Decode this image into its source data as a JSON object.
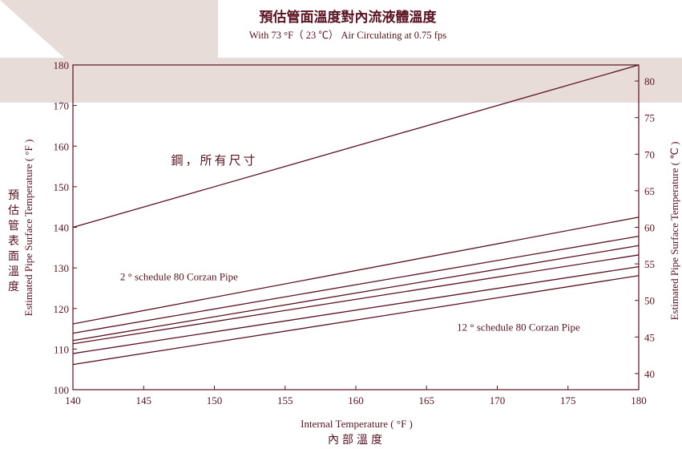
{
  "header": {
    "title": "預估管面溫度對內流液體溫度",
    "subtitle": "With 73 °F（ 23 ℃） Air Circulating at 0.75 fps"
  },
  "colors": {
    "band": "#e8dcd9",
    "line": "#5a1220",
    "text": "#5a1220",
    "axis": "#5a1220"
  },
  "chart_data": {
    "type": "line",
    "title": "預估管面溫度對內流液體溫度",
    "subtitle": "With 73 °F（ 23 ℃） Air Circulating at 0.75 fps",
    "xlabel": "Internal Temperature ( °F )",
    "xlabel_cn": "內部溫度",
    "ylabel": "Estimated Pipe Surface Temperature ( °F )",
    "ylabel_cn": "預估管表面溫度",
    "y2label": "Estimated Pipe Surface Temperature ( ℃ )",
    "xlim": [
      140,
      180
    ],
    "ylim": [
      100,
      180
    ],
    "y2lim": [
      37.8,
      82.2
    ],
    "x_ticks": [
      140,
      145,
      150,
      155,
      160,
      165,
      170,
      175,
      180
    ],
    "y_ticks": [
      100,
      110,
      120,
      130,
      140,
      150,
      160,
      170,
      180
    ],
    "y2_ticks": [
      40,
      45,
      50,
      55,
      60,
      65,
      70,
      75,
      80
    ],
    "grid": false,
    "x": [
      140,
      180
    ],
    "series": [
      {
        "values": [
          140,
          180
        ]
      },
      {
        "values": [
          116.2,
          142.5
        ]
      },
      {
        "values": [
          113.9,
          137.8
        ]
      },
      {
        "values": [
          112.1,
          135.5
        ]
      },
      {
        "values": [
          111.3,
          133.2
        ]
      },
      {
        "values": [
          108.9,
          130.3
        ]
      },
      {
        "values": [
          106.2,
          128.1
        ]
      }
    ],
    "annotations": [
      {
        "text": "鋼，所有尺寸",
        "x": 150,
        "y": 155.5
      },
      {
        "text": "2 ° schedule 80 Corzan Pipe",
        "x": 147.5,
        "y": 127
      },
      {
        "text": "12 ° schedule 80 Corzan Pipe",
        "x": 171.5,
        "y": 114.5
      }
    ]
  }
}
